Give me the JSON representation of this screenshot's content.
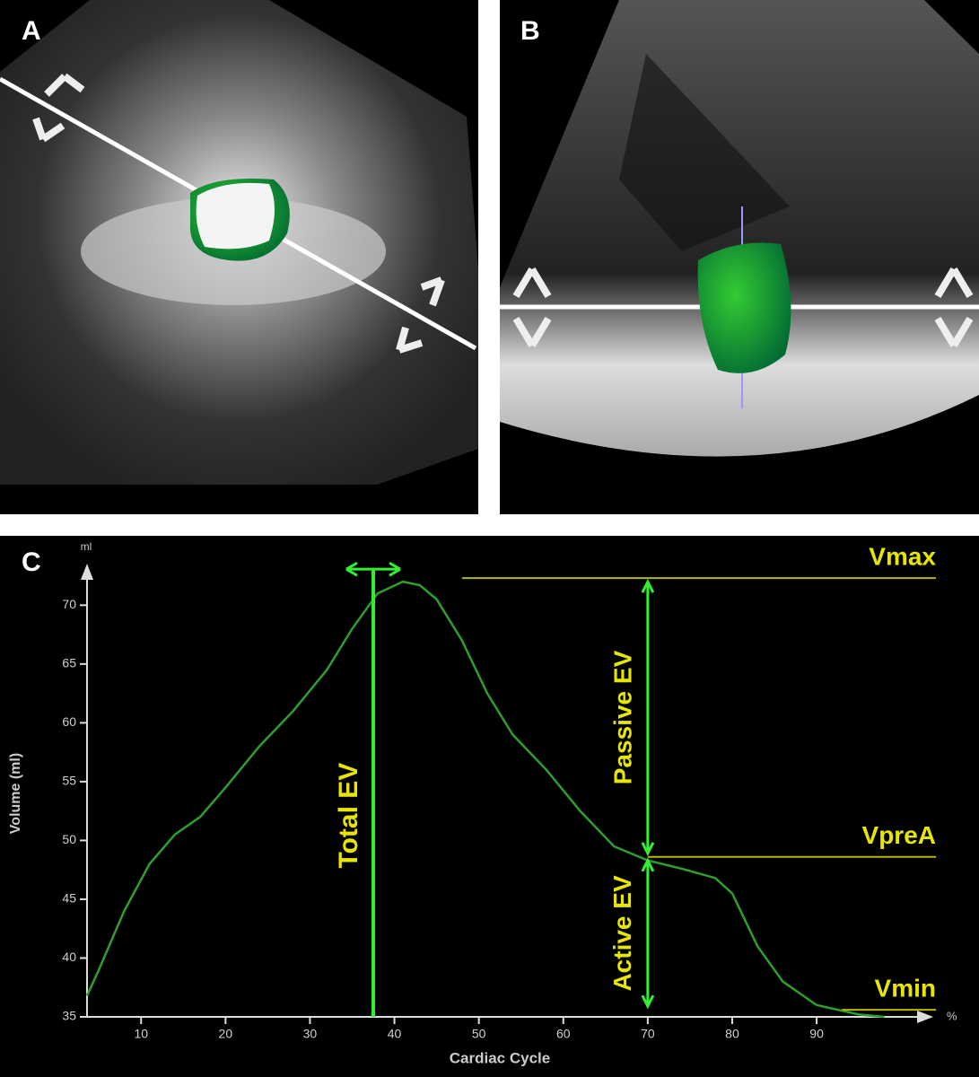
{
  "panel_labels": [
    "A",
    "B",
    "C"
  ],
  "chart_data": {
    "type": "line",
    "y_label": "Volume (ml)",
    "y_unit": "ml",
    "x_label": "Cardiac Cycle",
    "x_unit": "%",
    "x": [
      3.6,
      5,
      8,
      11,
      14,
      17,
      20,
      24,
      28,
      32,
      35,
      38,
      41,
      43,
      45,
      48,
      51,
      54,
      58,
      62,
      66,
      70,
      74,
      78,
      80,
      83,
      86,
      90,
      95,
      98
    ],
    "values": [
      36.8,
      39,
      44,
      48,
      50.5,
      52,
      54.5,
      58,
      61,
      64.5,
      68,
      71,
      72,
      71.7,
      70.5,
      67,
      62.5,
      59,
      56,
      52.5,
      49.5,
      48.3,
      47.6,
      46.8,
      45.5,
      41,
      38,
      36,
      35.2,
      35
    ],
    "color": "#2f9e2f",
    "xlim": [
      3.6,
      102
    ],
    "ylim": [
      35,
      73
    ],
    "xticks": [
      10,
      20,
      30,
      40,
      50,
      60,
      70,
      80,
      90
    ],
    "yticks": [
      35,
      40,
      45,
      50,
      55,
      60,
      65,
      70
    ],
    "hlines": [
      {
        "label": "Vmax",
        "y": 72.3,
        "x": 48
      },
      {
        "label": "VpreA",
        "y": 48.6,
        "x": 70
      },
      {
        "label": "Vmin",
        "y": 35.6,
        "x": 93
      }
    ],
    "vline": {
      "label": "Total EV",
      "x": 37.5
    },
    "spans": [
      {
        "label": "Passive EV",
        "x": 70
      },
      {
        "label": "Active EV",
        "x": 70
      }
    ]
  }
}
